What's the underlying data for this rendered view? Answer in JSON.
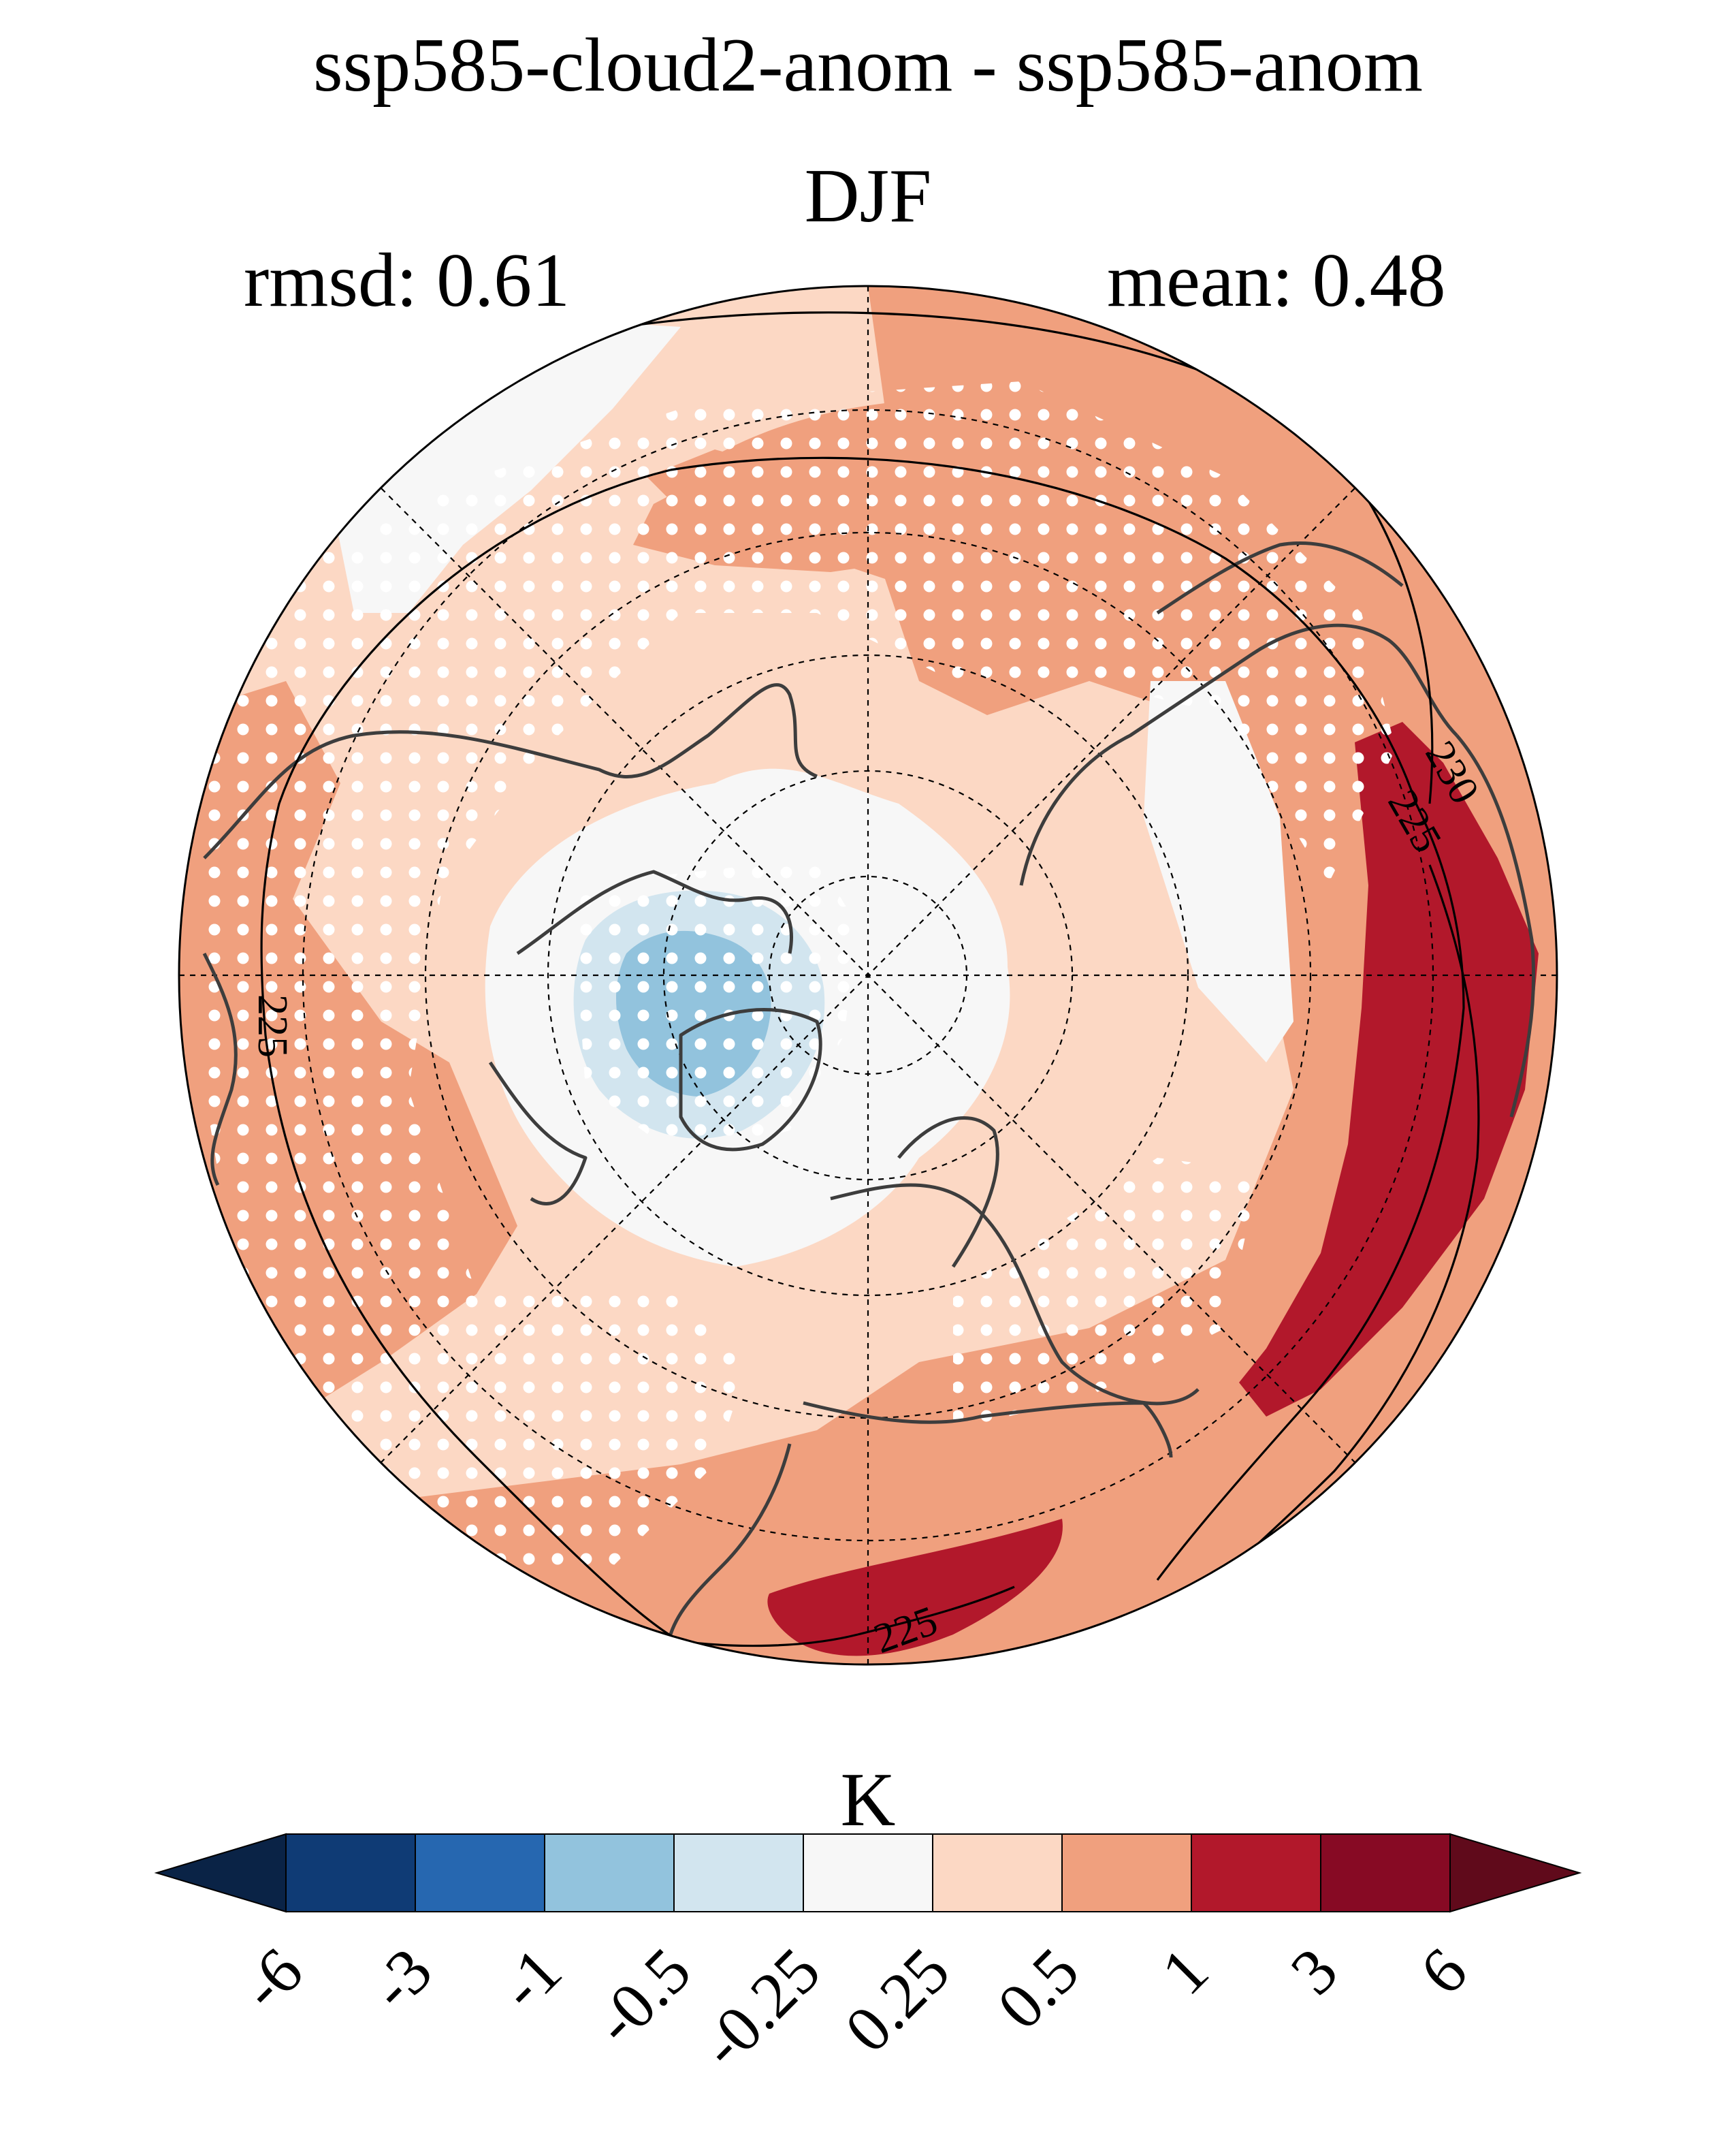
{
  "title": "ssp585-cloud2-anom - ssp585-anom",
  "season": "DJF",
  "stats": {
    "rmsd": "rmsd: 0.61",
    "mean": "mean: 0.48"
  },
  "contour_labels": [
    "225",
    "225",
    "230",
    "225"
  ],
  "colorbar": {
    "unit": "K",
    "ticks": [
      "-6",
      "-3",
      "-1",
      "-0.5",
      "-0.25",
      "0.25",
      "0.5",
      "1",
      "3",
      "6"
    ],
    "colors": [
      "#0a2346",
      "#0f3b75",
      "#2667b0",
      "#92c3dd",
      "#d2e5ef",
      "#f7f7f7",
      "#fcd8c4",
      "#f0a07e",
      "#b2182b",
      "#870a24",
      "#600a1b"
    ]
  },
  "map_colors": {
    "light_blue": "#92c3dd",
    "pale_blue": "#d2e5ef",
    "near_white": "#f7f7f7",
    "pale_orange": "#fcd8c4",
    "orange": "#f0a07e",
    "red": "#b2182b",
    "coast": "#3d3d3d"
  }
}
